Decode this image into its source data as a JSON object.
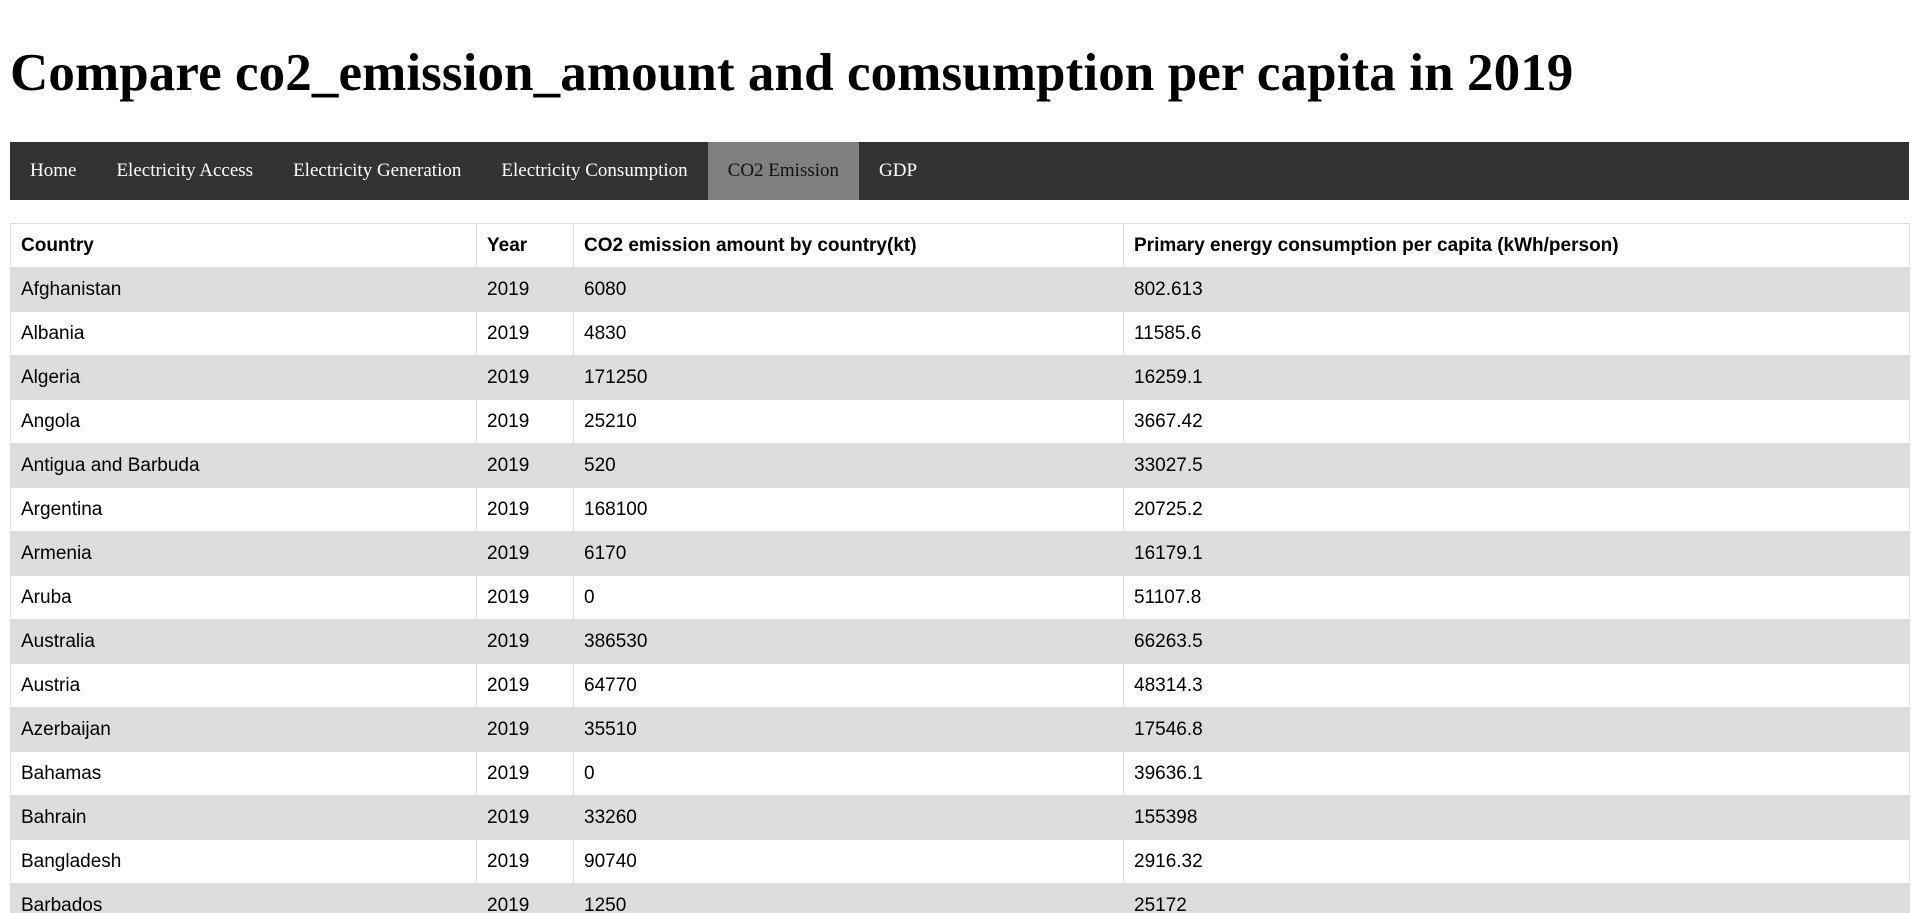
{
  "page_title": "Compare co2_emission_amount and comsumption per capita in 2019",
  "nav": {
    "items": [
      {
        "label": "Home",
        "active": false
      },
      {
        "label": "Electricity Access",
        "active": false
      },
      {
        "label": "Electricity Generation",
        "active": false
      },
      {
        "label": "Electricity Consumption",
        "active": false
      },
      {
        "label": "CO2 Emission",
        "active": true
      },
      {
        "label": "GDP",
        "active": false
      }
    ]
  },
  "table": {
    "headers": [
      "Country",
      "Year",
      "CO2 emission amount by country(kt)",
      "Primary energy consumption per capita (kWh/person)"
    ],
    "rows": [
      [
        "Afghanistan",
        "2019",
        "6080",
        "802.613"
      ],
      [
        "Albania",
        "2019",
        "4830",
        "11585.6"
      ],
      [
        "Algeria",
        "2019",
        "171250",
        "16259.1"
      ],
      [
        "Angola",
        "2019",
        "25210",
        "3667.42"
      ],
      [
        "Antigua and Barbuda",
        "2019",
        "520",
        "33027.5"
      ],
      [
        "Argentina",
        "2019",
        "168100",
        "20725.2"
      ],
      [
        "Armenia",
        "2019",
        "6170",
        "16179.1"
      ],
      [
        "Aruba",
        "2019",
        "0",
        "51107.8"
      ],
      [
        "Australia",
        "2019",
        "386530",
        "66263.5"
      ],
      [
        "Austria",
        "2019",
        "64770",
        "48314.3"
      ],
      [
        "Azerbaijan",
        "2019",
        "35510",
        "17546.8"
      ],
      [
        "Bahamas",
        "2019",
        "0",
        "39636.1"
      ],
      [
        "Bahrain",
        "2019",
        "33260",
        "155398"
      ],
      [
        "Bangladesh",
        "2019",
        "90740",
        "2916.32"
      ],
      [
        "Barbados",
        "2019",
        "1250",
        "25172"
      ]
    ]
  },
  "colors": {
    "nav_bg": "#333333",
    "nav_active_bg": "#808080",
    "row_stripe": "#dddddd",
    "border": "#dddddd"
  }
}
